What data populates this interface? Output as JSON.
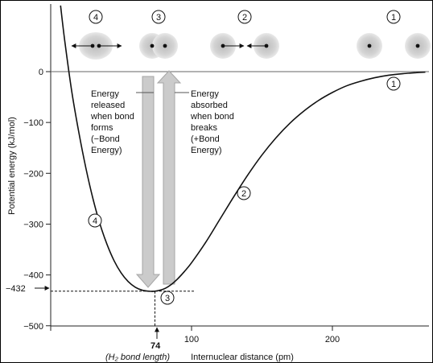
{
  "chart_data": {
    "type": "line",
    "xlabel": "Internuclear distance (pm)",
    "ylabel": "Potential energy (kJ/mol)",
    "yticks": [
      "0",
      "−100",
      "−200",
      "−300",
      "−400",
      "−500"
    ],
    "ytick_values": [
      0,
      -100,
      -200,
      -300,
      -400,
      -500
    ],
    "xticks": [
      "100",
      "200"
    ],
    "xtick_values": [
      100,
      200
    ],
    "xlim": [
      0,
      270
    ],
    "ylim": [
      -500,
      120
    ],
    "minimum": {
      "x": 74,
      "y": -432
    },
    "minimum_y_label": "−432",
    "minimum_x_label": "74",
    "bond_length_note": "(H₂ bond length)",
    "curve": {
      "name": "",
      "x": [
        7,
        10,
        15,
        20,
        25,
        30,
        35,
        40,
        45,
        50,
        55,
        60,
        65,
        70,
        74,
        80,
        85,
        90,
        95,
        100,
        110,
        120,
        130,
        140,
        150,
        160,
        170,
        180,
        190,
        200,
        210,
        220,
        230,
        240,
        250,
        260,
        266
      ],
      "y": [
        130,
        60,
        -40,
        -120,
        -190,
        -250,
        -300,
        -340,
        -372,
        -396,
        -413,
        -424,
        -430,
        -432,
        -432,
        -428,
        -420,
        -408,
        -393,
        -376,
        -336,
        -291,
        -246,
        -203,
        -164,
        -130,
        -101,
        -77,
        -57,
        -41,
        -28,
        -19,
        -12,
        -7,
        -4,
        -2,
        -1
      ]
    }
  },
  "markers": {
    "stage_labels": [
      "4",
      "3",
      "2",
      "1"
    ],
    "curve_labels": [
      "1",
      "2",
      "3",
      "4"
    ]
  },
  "annotations": {
    "released": [
      "Energy",
      "released",
      "when bond",
      "forms",
      "(−Bond",
      "Energy)"
    ],
    "absorbed": [
      "Energy",
      "absorbed",
      "when bond",
      "breaks",
      "(+Bond",
      "Energy)"
    ]
  },
  "colors": {
    "curve": "#111111",
    "arrow_fill": "#c8c8c8",
    "arrow_stroke": "#a8a8a8",
    "atom_halo": "#cfcfcf"
  }
}
